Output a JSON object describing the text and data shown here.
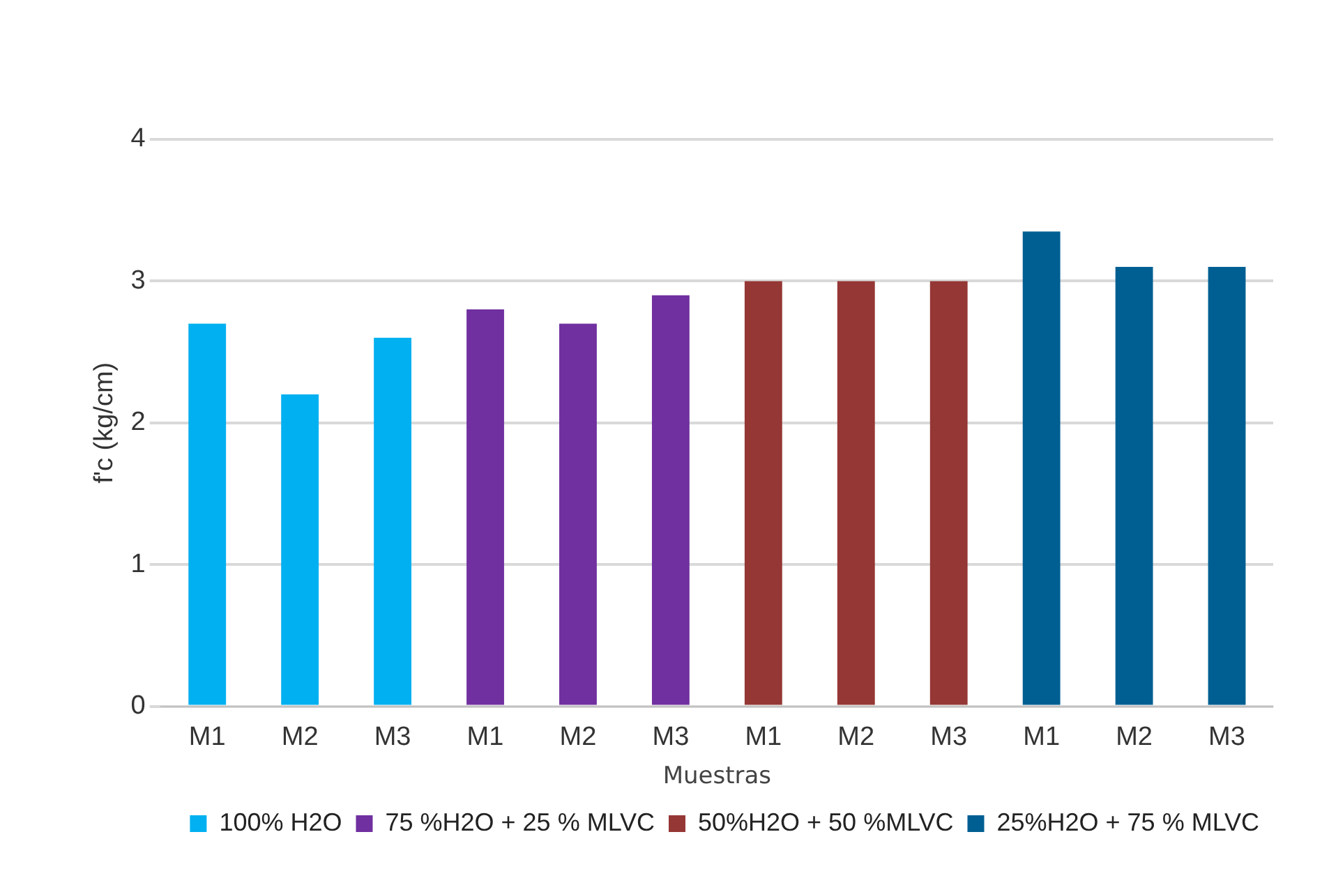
{
  "chart_data": {
    "type": "bar",
    "xlabel": "Muestras",
    "ylabel": "f'c (kg/cm)",
    "categories": [
      "M1",
      "M2",
      "M3",
      "M1",
      "M2",
      "M3",
      "M1",
      "M2",
      "M3",
      "M1",
      "M2",
      "M3"
    ],
    "series": [
      {
        "name": "100% H2O",
        "color": "#00b0f0",
        "values": [
          2.7,
          2.2,
          2.6,
          null,
          null,
          null,
          null,
          null,
          null,
          null,
          null,
          null
        ]
      },
      {
        "name": "75 %H2O + 25 % MLVC",
        "color": "#7030a0",
        "values": [
          null,
          null,
          null,
          2.8,
          2.7,
          2.9,
          null,
          null,
          null,
          null,
          null,
          null
        ]
      },
      {
        "name": "50%H2O + 50 %MLVC",
        "color": "#953735",
        "values": [
          null,
          null,
          null,
          null,
          null,
          null,
          3.0,
          3.0,
          3.0,
          null,
          null,
          null
        ]
      },
      {
        "name": "25%H2O + 75 % MLVC",
        "color": "#005f92",
        "values": [
          null,
          null,
          null,
          null,
          null,
          null,
          null,
          null,
          null,
          3.35,
          3.1,
          3.1
        ]
      }
    ],
    "ylim": [
      0,
      4
    ],
    "yticks": [
      0,
      1,
      2,
      3,
      4
    ],
    "grid": "y",
    "legend": "bottom right"
  }
}
